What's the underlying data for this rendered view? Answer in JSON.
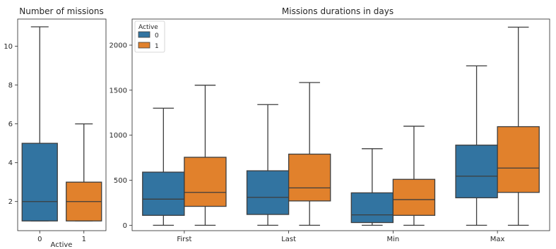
{
  "colors": {
    "series_0": "#3274a1",
    "series_1": "#e1812c",
    "outline": "#3d3d3d",
    "axis": "#262626"
  },
  "chart_data": [
    {
      "type": "box",
      "title": "Number of missions",
      "xlabel": "Active",
      "ylabel": "",
      "categories": [
        "0",
        "1"
      ],
      "ylim": [
        0.5,
        11.4
      ],
      "yticks": [
        2,
        4,
        6,
        8,
        10
      ],
      "grid": false,
      "boxes": [
        {
          "category": "0",
          "series": "0",
          "whisker_low": 1,
          "q1": 1,
          "median": 2,
          "q3": 5,
          "whisker_high": 11
        },
        {
          "category": "1",
          "series": "1",
          "whisker_low": 1,
          "q1": 1,
          "median": 2,
          "q3": 3,
          "whisker_high": 6
        }
      ]
    },
    {
      "type": "box",
      "title": "Missions durations in days",
      "xlabel": "",
      "ylabel": "",
      "categories": [
        "First",
        "Last",
        "Min",
        "Max"
      ],
      "ylim": [
        -60,
        2290
      ],
      "yticks": [
        0,
        500,
        1000,
        1500,
        2000
      ],
      "grid": false,
      "legend": {
        "title": "Active",
        "position": "top-left",
        "entries": [
          "0",
          "1"
        ]
      },
      "series": [
        {
          "name": "0",
          "boxes": [
            {
              "whisker_low": 0,
              "q1": 110,
              "median": 290,
              "q3": 590,
              "whisker_high": 1300
            },
            {
              "whisker_low": 0,
              "q1": 120,
              "median": 310,
              "q3": 605,
              "whisker_high": 1340
            },
            {
              "whisker_low": 0,
              "q1": 30,
              "median": 115,
              "q3": 360,
              "whisker_high": 850
            },
            {
              "whisker_low": 0,
              "q1": 305,
              "median": 545,
              "q3": 890,
              "whisker_high": 1770
            }
          ]
        },
        {
          "name": "1",
          "boxes": [
            {
              "whisker_low": 0,
              "q1": 210,
              "median": 365,
              "q3": 755,
              "whisker_high": 1555
            },
            {
              "whisker_low": 0,
              "q1": 270,
              "median": 415,
              "q3": 790,
              "whisker_high": 1585
            },
            {
              "whisker_low": 0,
              "q1": 110,
              "median": 285,
              "q3": 510,
              "whisker_high": 1100
            },
            {
              "whisker_low": 0,
              "q1": 365,
              "median": 635,
              "q3": 1095,
              "whisker_high": 2200
            }
          ]
        }
      ]
    }
  ]
}
